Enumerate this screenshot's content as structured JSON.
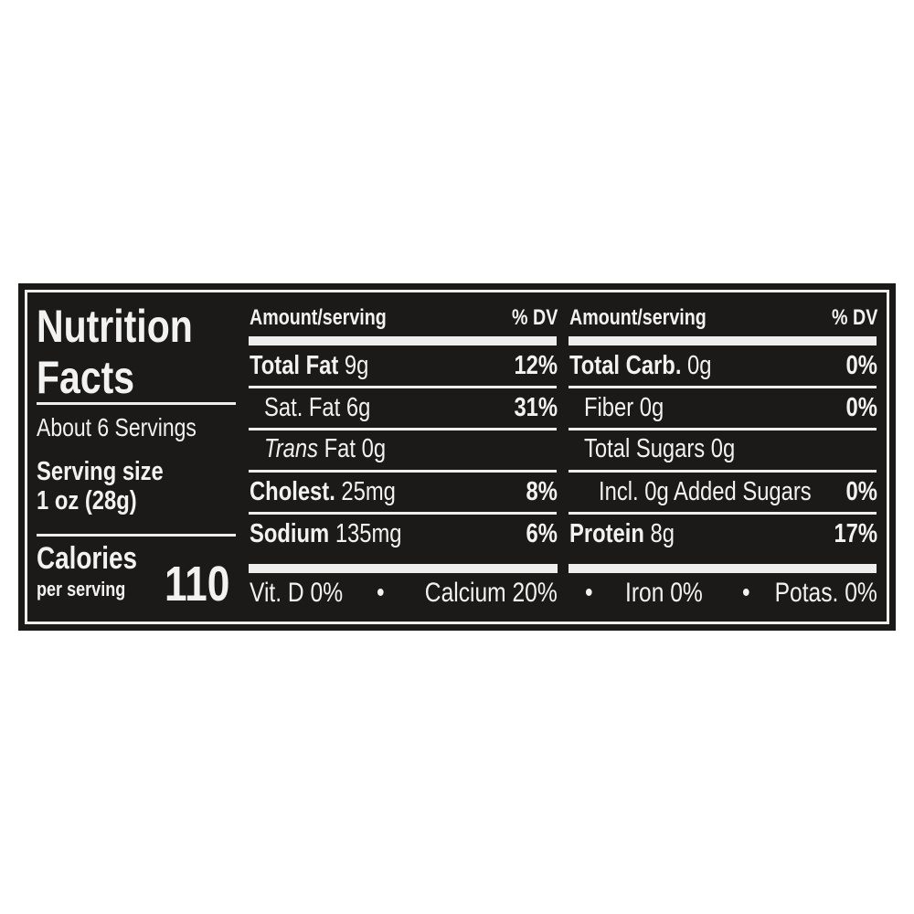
{
  "title_line1": "Nutrition",
  "title_line2": "Facts",
  "servings": "About 6 Servings",
  "serving_size_label": "Serving size",
  "serving_size_value": "1 oz (28g)",
  "calories_label": "Calories",
  "calories_sub": "per serving",
  "calories_value": "110",
  "left_table": {
    "header_amount": "Amount/serving",
    "header_dv": "% DV",
    "rows": [
      {
        "name": "Total Fat",
        "amount": "9g",
        "dv": "12%",
        "bold": true,
        "indent": 0
      },
      {
        "name": "Sat. Fat",
        "amount": "6g",
        "dv": "31%",
        "bold": false,
        "indent": 1
      },
      {
        "name": "Trans",
        "name_suffix": "Fat",
        "amount": "0g",
        "dv": "",
        "bold": false,
        "indent": 1
      },
      {
        "name": "Cholest.",
        "amount": "25mg",
        "dv": "8%",
        "bold": true,
        "indent": 0
      },
      {
        "name": "Sodium",
        "amount": "135mg",
        "dv": "6%",
        "bold": true,
        "indent": 0
      }
    ]
  },
  "right_table": {
    "header_amount": "Amount/serving",
    "header_dv": "% DV",
    "rows": [
      {
        "name": "Total Carb.",
        "amount": "0g",
        "dv": "0%",
        "bold": true,
        "indent": 0
      },
      {
        "name": "Fiber",
        "amount": "0g",
        "dv": "0%",
        "bold": false,
        "indent": 1
      },
      {
        "name": "Total Sugars",
        "amount": "0g",
        "dv": "",
        "bold": false,
        "indent": 1
      },
      {
        "name": "Incl. 0g Added Sugars",
        "amount": "",
        "dv": "0%",
        "bold": false,
        "indent": 2
      },
      {
        "name": "Protein",
        "amount": "8g",
        "dv": "17%",
        "bold": true,
        "indent": 0
      }
    ]
  },
  "vitamins": [
    "Vit. D 0%",
    "Calcium 20%",
    "Iron 0%",
    "Potas. 0%"
  ],
  "bullet": "•"
}
